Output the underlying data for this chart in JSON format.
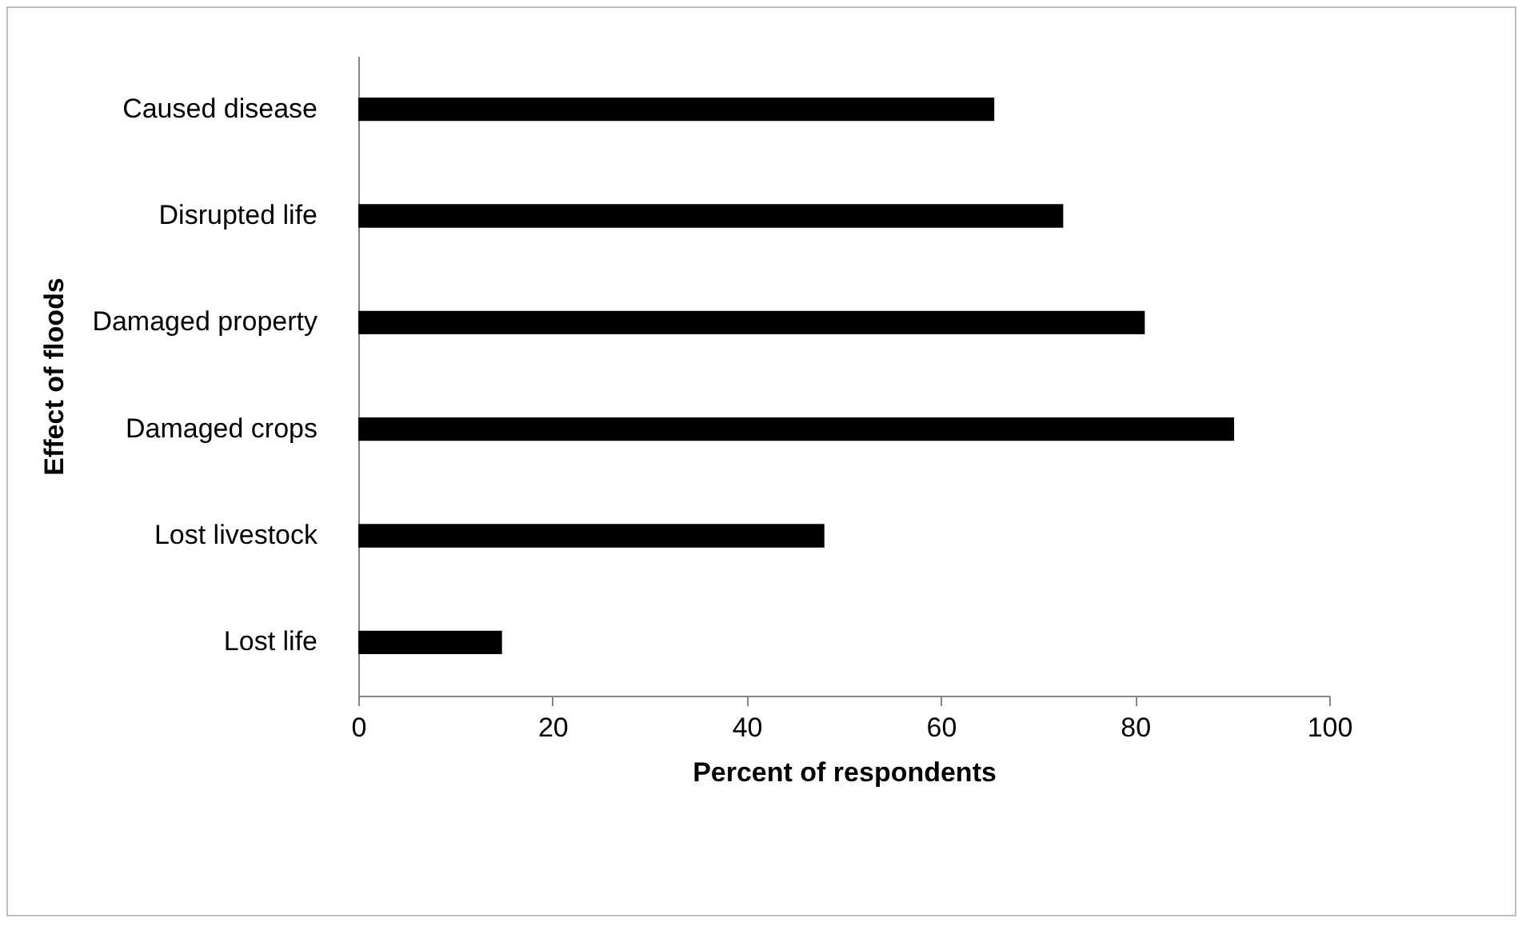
{
  "chart_data": {
    "type": "bar",
    "orientation": "horizontal",
    "xlabel": "Percent of respondents",
    "ylabel": "Effect of floods",
    "categories": [
      "Caused disease",
      "Disrupted life",
      "Damaged property",
      "Damaged crops",
      "Lost livestock",
      "Lost life"
    ],
    "values": [
      65.5,
      72.6,
      81,
      90.2,
      48,
      14.8
    ],
    "color": "#000000",
    "xlim": [
      0,
      100
    ],
    "xticks": [
      0,
      20,
      40,
      60,
      80,
      100
    ],
    "grid": false
  }
}
